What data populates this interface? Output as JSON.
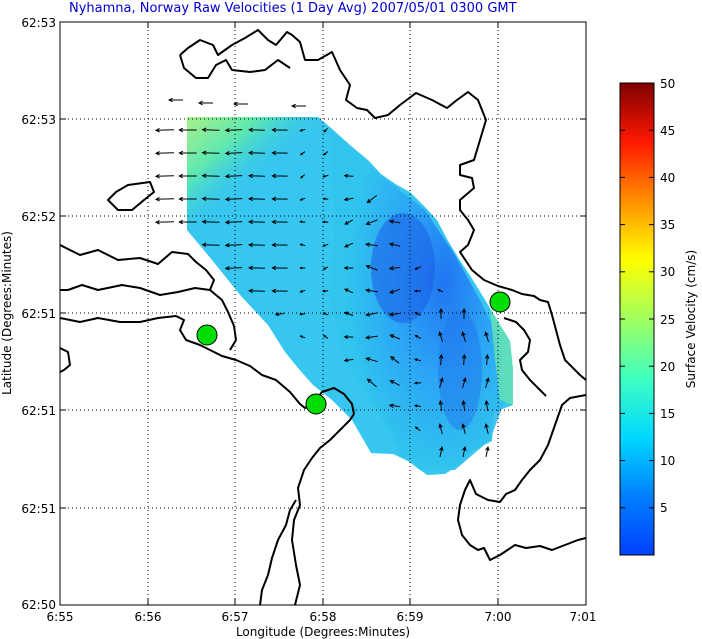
{
  "title": "Nyhamna, Norway Raw Velocities (1 Day Avg) 2007/05/01 0300 GMT",
  "x_axis": {
    "label": "Longitude (Degrees:Minutes)",
    "ticks": [
      "6:55",
      "6:56",
      "6:57",
      "6:58",
      "6:59",
      "7:00",
      "7:01"
    ]
  },
  "y_axis": {
    "label": "Latitude (Degrees:Minutes)",
    "ticks": [
      "62:53",
      "62:53",
      "62:52",
      "62:51",
      "62:51",
      "62:51",
      "62:50"
    ]
  },
  "colorbar": {
    "label": "Surface Velocity (cm/s)",
    "range": [
      0,
      50
    ],
    "ticks": [
      "50",
      "45",
      "40",
      "35",
      "30",
      "25",
      "20",
      "15",
      "10",
      "5"
    ]
  },
  "map_features": {
    "coastline_color": "#000000",
    "grid": true,
    "stations_color": "#00dd00",
    "station_count": 3
  }
}
